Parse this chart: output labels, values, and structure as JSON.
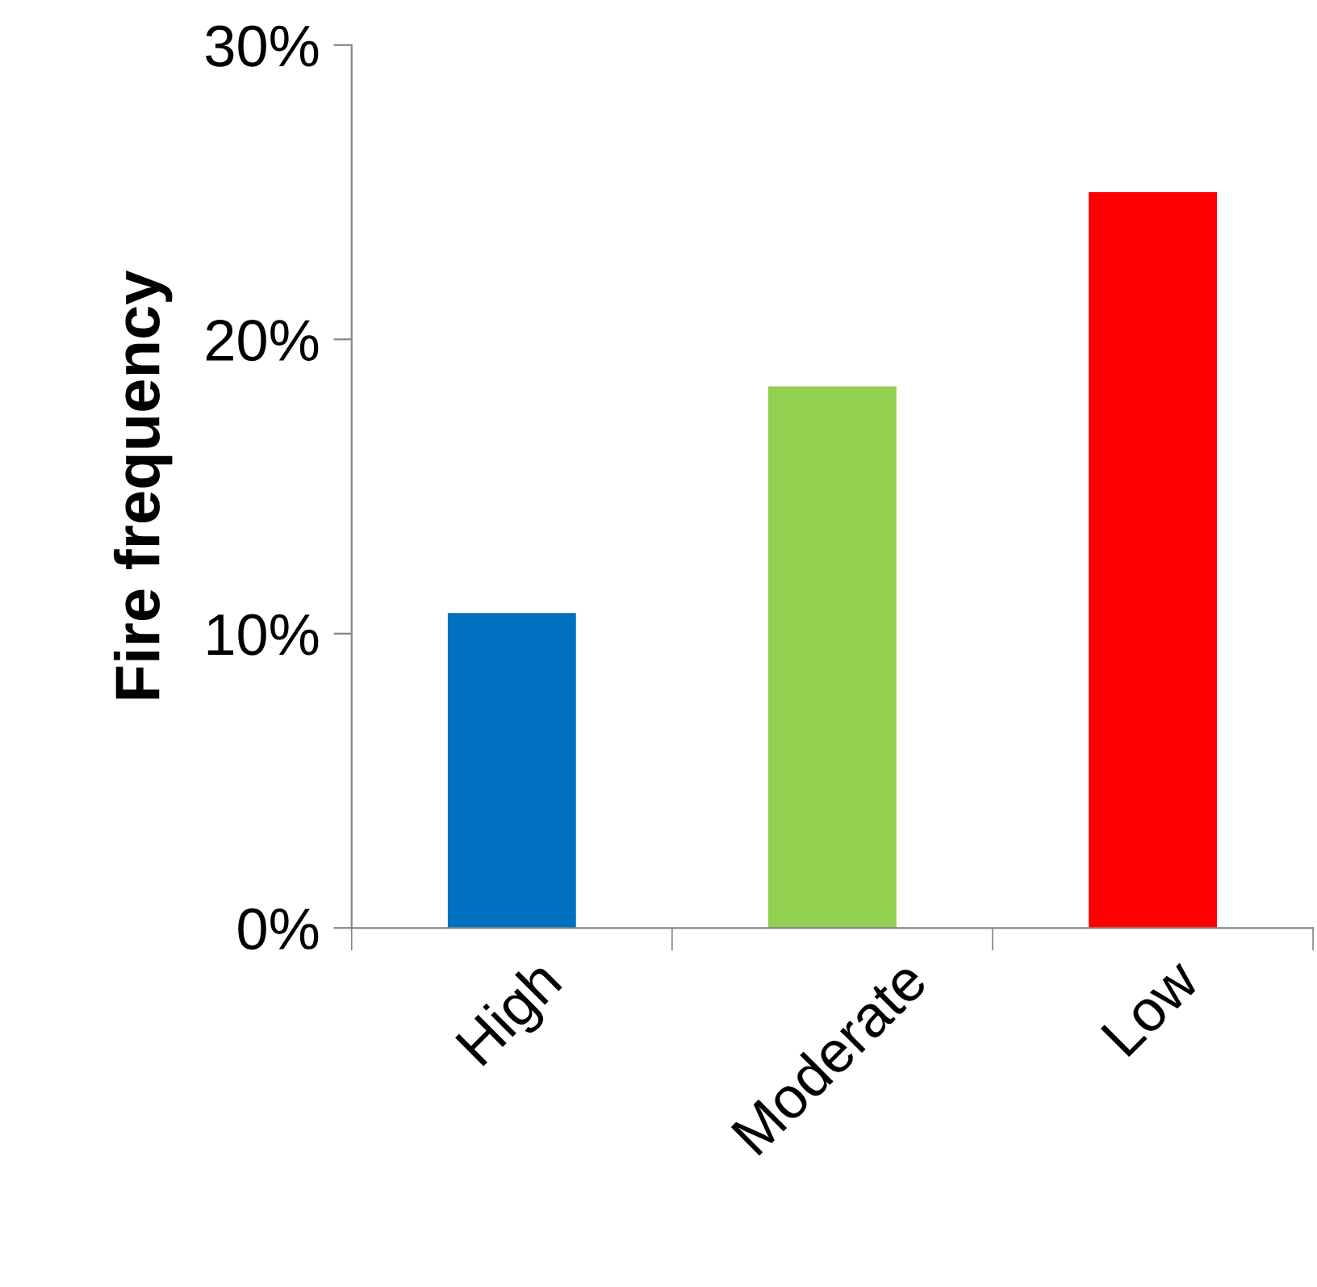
{
  "chart_data": {
    "type": "bar",
    "ylabel": "Fire frequency",
    "categories": [
      "High",
      "Moderate",
      "Low"
    ],
    "values": [
      10.7,
      18.4,
      25.0
    ],
    "colors": [
      "#0070c0",
      "#92d050",
      "#ff0000"
    ],
    "ylim": [
      0,
      30
    ],
    "yticks": [
      {
        "value": 0,
        "label": "0%"
      },
      {
        "value": 10,
        "label": "10%"
      },
      {
        "value": 20,
        "label": "20%"
      },
      {
        "value": 30,
        "label": "30%"
      }
    ],
    "grid": false,
    "legend": false
  }
}
